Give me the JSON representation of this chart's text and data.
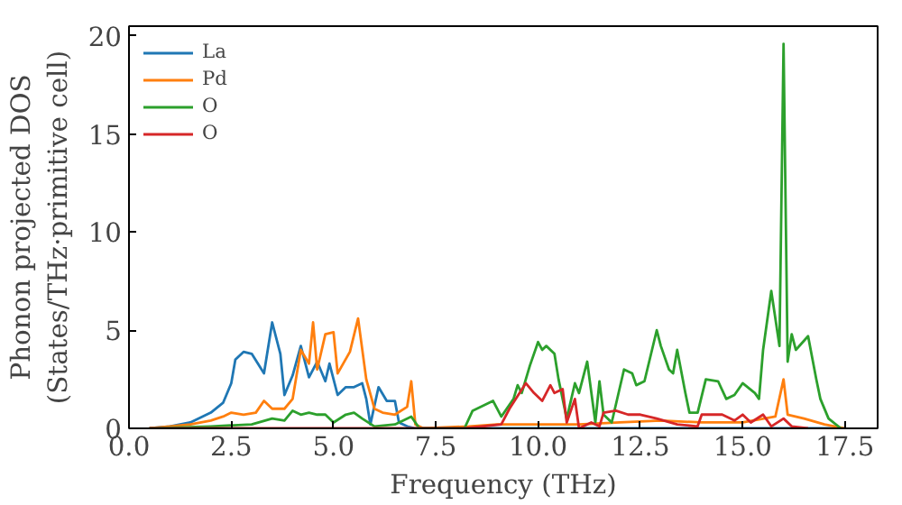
{
  "chart_data": {
    "type": "line",
    "xlabel": "Frequency (THz)",
    "ylabel": "Phonon projected DOS\n(States/THz·primitive cell)",
    "xlim": [
      0,
      18.3
    ],
    "ylim": [
      0,
      20.5
    ],
    "xticks": [
      {
        "value": 0,
        "label": "0.0"
      },
      {
        "value": 2.5,
        "label": "2.5"
      },
      {
        "value": 5,
        "label": "5.0"
      },
      {
        "value": 7.5,
        "label": "7.5"
      },
      {
        "value": 10,
        "label": "10.0"
      },
      {
        "value": 12.5,
        "label": "12.5"
      },
      {
        "value": 15,
        "label": "15.0"
      },
      {
        "value": 17.5,
        "label": "17.5"
      }
    ],
    "yticks": [
      0,
      5,
      10,
      15,
      20
    ],
    "legend": "top left",
    "grid": false,
    "series": [
      {
        "name": "La",
        "color": "#1f77b4",
        "x": [
          0.5,
          1,
          1.5,
          2,
          2.3,
          2.5,
          2.6,
          2.8,
          3,
          3.3,
          3.5,
          3.7,
          3.8,
          4,
          4.2,
          4.4,
          4.6,
          4.8,
          4.9,
          5.1,
          5.3,
          5.5,
          5.7,
          5.8,
          5.9,
          6.1,
          6.3,
          6.5,
          6.6,
          6.8,
          7,
          8.3,
          17.5
        ],
        "values": [
          0,
          0.1,
          0.3,
          0.8,
          1.3,
          2.3,
          3.5,
          3.9,
          3.8,
          2.8,
          5.4,
          3.8,
          1.7,
          2.7,
          4.2,
          2.6,
          3.4,
          2.4,
          3.3,
          1.7,
          2.1,
          2.1,
          2.3,
          1.5,
          0.2,
          2.1,
          1.4,
          1.4,
          0.3,
          0.1,
          0,
          0,
          0
        ]
      },
      {
        "name": "Pd",
        "color": "#ff7f0e",
        "x": [
          0.5,
          1,
          1.5,
          2,
          2.3,
          2.5,
          2.8,
          3.1,
          3.3,
          3.5,
          3.8,
          4,
          4.2,
          4.4,
          4.5,
          4.6,
          4.8,
          5,
          5.1,
          5.4,
          5.6,
          5.8,
          6,
          6.2,
          6.5,
          6.8,
          6.9,
          7,
          7.2,
          8.3,
          9,
          10,
          11,
          12,
          13,
          14,
          15,
          15.8,
          16,
          16.1,
          16.5,
          17,
          17.5
        ],
        "values": [
          0,
          0.1,
          0.2,
          0.4,
          0.6,
          0.8,
          0.7,
          0.8,
          1.4,
          1,
          1,
          1.5,
          4,
          3.3,
          5.4,
          3,
          4.8,
          4.9,
          2.8,
          3.9,
          5.6,
          2.5,
          1,
          0.8,
          0.7,
          1.1,
          2.4,
          0.2,
          0,
          0.1,
          0.2,
          0.2,
          0.2,
          0.3,
          0.4,
          0.3,
          0.3,
          0.6,
          2.5,
          0.7,
          0.5,
          0.2,
          0
        ]
      },
      {
        "name": "O",
        "color": "#2ca02c",
        "x": [
          0.5,
          2,
          3,
          3.5,
          3.8,
          4,
          4.2,
          4.4,
          4.6,
          4.8,
          5,
          5.3,
          5.5,
          5.7,
          6,
          6.5,
          6.9,
          7.1,
          8.2,
          8.4,
          8.9,
          9.1,
          9.4,
          9.5,
          9.6,
          9.8,
          10,
          10.1,
          10.2,
          10.4,
          10.5,
          10.7,
          10.9,
          11,
          11.2,
          11.4,
          11.5,
          11.6,
          11.8,
          12.1,
          12.3,
          12.4,
          12.6,
          12.9,
          13,
          13.2,
          13.3,
          13.4,
          13.6,
          13.7,
          13.9,
          14.1,
          14.4,
          14.6,
          14.8,
          15,
          15.3,
          15.4,
          15.5,
          15.7,
          15.9,
          16,
          16.1,
          16.2,
          16.3,
          16.6,
          16.8,
          16.9,
          17.1,
          17.4
        ],
        "values": [
          0,
          0.1,
          0.2,
          0.5,
          0.4,
          0.9,
          0.7,
          0.8,
          0.7,
          0.7,
          0.3,
          0.7,
          0.8,
          0.5,
          0.1,
          0.2,
          0.6,
          0,
          0,
          0.9,
          1.4,
          0.6,
          1.5,
          2.2,
          1.8,
          3.2,
          4.4,
          4,
          4.2,
          3.8,
          2.5,
          0.5,
          2.3,
          1.8,
          3.4,
          0.3,
          2.4,
          0.7,
          0.3,
          3,
          2.8,
          2.2,
          2.4,
          5,
          4.2,
          3,
          2.8,
          4,
          1.8,
          0.8,
          0.8,
          2.5,
          2.4,
          1.5,
          1.7,
          2.3,
          1.8,
          1.5,
          4,
          7,
          4.2,
          19.6,
          3.4,
          4.8,
          4,
          4.7,
          2.5,
          1.5,
          0.5,
          0
        ]
      },
      {
        "name": "O",
        "color": "#d62728",
        "x": [
          0.5,
          8.2,
          9.1,
          9.3,
          9.7,
          9.9,
          10.1,
          10.3,
          10.4,
          10.6,
          10.7,
          10.9,
          11,
          11.3,
          11.5,
          11.6,
          11.9,
          12.2,
          12.5,
          12.9,
          13.4,
          13.9,
          14,
          14.5,
          14.8,
          15,
          15.2,
          15.5,
          15.7,
          16,
          16.2,
          16.6
        ],
        "values": [
          0,
          0,
          0.2,
          1,
          2.3,
          1.8,
          1.4,
          2.2,
          1.8,
          2,
          0.3,
          1.5,
          0,
          0.3,
          0.1,
          0.8,
          0.9,
          0.7,
          0.7,
          0.5,
          0.2,
          0.1,
          0.7,
          0.7,
          0.4,
          0.7,
          0.3,
          0.7,
          0.1,
          0.5,
          0.1,
          0
        ]
      }
    ]
  }
}
